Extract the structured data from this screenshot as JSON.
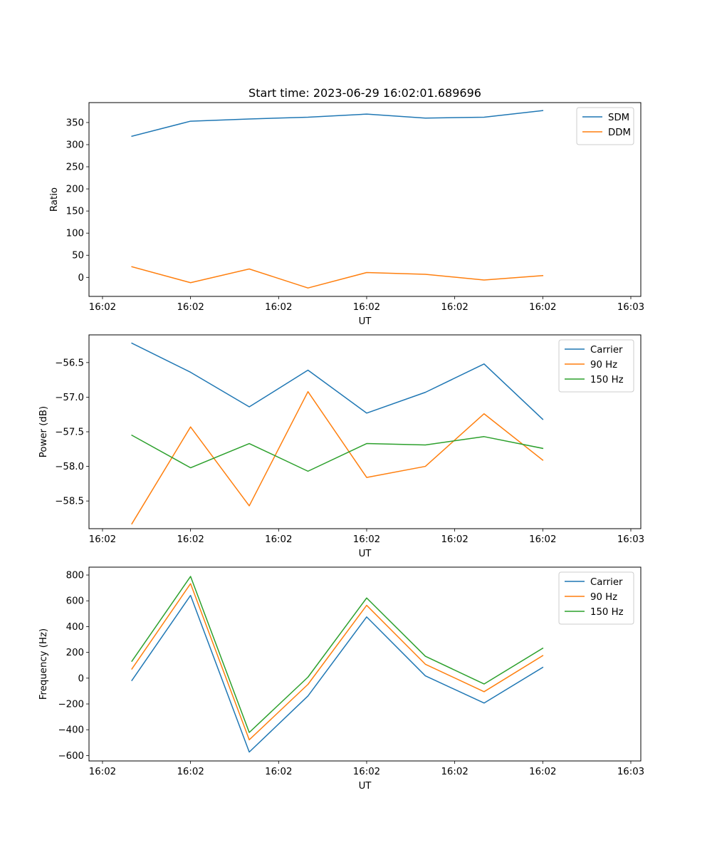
{
  "chart_data": [
    {
      "type": "line",
      "title": "Start time: 2023-06-29 16:02:01.689696",
      "xlabel": "UT",
      "ylabel": "Ratio",
      "x": [
        1,
        2,
        3,
        4,
        5,
        6,
        7,
        8
      ],
      "xlim": [
        0.27,
        9.67
      ],
      "xticks": [
        0.5,
        2,
        3.5,
        5,
        6.5,
        8,
        9.5
      ],
      "xtick_labels": [
        "16:02",
        "16:02",
        "16:02",
        "16:02",
        "16:02",
        "16:02",
        "16:03"
      ],
      "ylim": [
        -43,
        395
      ],
      "yticks": [
        0,
        50,
        100,
        150,
        200,
        250,
        300,
        350
      ],
      "ytick_labels": [
        "0",
        "50",
        "100",
        "150",
        "200",
        "250",
        "300",
        "350"
      ],
      "grid": false,
      "legend_position": "top-right",
      "series": [
        {
          "name": "SDM",
          "color": "#1f77b4",
          "values": [
            319,
            353,
            358,
            362,
            369,
            360,
            362,
            377
          ]
        },
        {
          "name": "DDM",
          "color": "#ff7f0e",
          "values": [
            24,
            -12,
            19,
            -24,
            11,
            7,
            -6,
            4
          ]
        }
      ]
    },
    {
      "type": "line",
      "title": "",
      "xlabel": "UT",
      "ylabel": "Power (dB)",
      "x": [
        1,
        2,
        3,
        4,
        5,
        6,
        7,
        8
      ],
      "xlim": [
        0.27,
        9.67
      ],
      "xticks": [
        0.5,
        2,
        3.5,
        5,
        6.5,
        8,
        9.5
      ],
      "xtick_labels": [
        "16:02",
        "16:02",
        "16:02",
        "16:02",
        "16:02",
        "16:02",
        "16:03"
      ],
      "ylim": [
        -58.9,
        -56.1
      ],
      "yticks": [
        -58.5,
        -58.0,
        -57.5,
        -57.0,
        -56.5
      ],
      "ytick_labels": [
        "−58.5",
        "−58.0",
        "−57.5",
        "−57.0",
        "−56.5"
      ],
      "grid": false,
      "legend_position": "top-right",
      "series": [
        {
          "name": "Carrier",
          "color": "#1f77b4",
          "values": [
            -56.22,
            -56.64,
            -57.14,
            -56.61,
            -57.23,
            -56.93,
            -56.52,
            -57.32
          ]
        },
        {
          "name": "90 Hz",
          "color": "#ff7f0e",
          "values": [
            -58.83,
            -57.43,
            -58.57,
            -56.92,
            -58.16,
            -58.0,
            -57.24,
            -57.91
          ]
        },
        {
          "name": "150 Hz",
          "color": "#2ca02c",
          "values": [
            -57.55,
            -58.02,
            -57.67,
            -58.07,
            -57.67,
            -57.69,
            -57.57,
            -57.74
          ]
        }
      ]
    },
    {
      "type": "line",
      "title": "",
      "xlabel": "UT",
      "ylabel": "Frequency (Hz)",
      "x": [
        1,
        2,
        3,
        4,
        5,
        6,
        7,
        8
      ],
      "xlim": [
        0.27,
        9.67
      ],
      "xticks": [
        0.5,
        2,
        3.5,
        5,
        6.5,
        8,
        9.5
      ],
      "xtick_labels": [
        "16:02",
        "16:02",
        "16:02",
        "16:02",
        "16:02",
        "16:02",
        "16:03"
      ],
      "ylim": [
        -642,
        861
      ],
      "yticks": [
        -600,
        -400,
        -200,
        0,
        200,
        400,
        600,
        800
      ],
      "ytick_labels": [
        "−600",
        "−400",
        "−200",
        "0",
        "200",
        "400",
        "600",
        "800"
      ],
      "grid": false,
      "legend_position": "top-right",
      "series": [
        {
          "name": "Carrier",
          "color": "#1f77b4",
          "values": [
            -18,
            642,
            -573,
            -138,
            475,
            18,
            -193,
            84
          ]
        },
        {
          "name": "90 Hz",
          "color": "#ff7f0e",
          "values": [
            71,
            733,
            -478,
            -48,
            565,
            108,
            -105,
            175
          ]
        },
        {
          "name": "150 Hz",
          "color": "#2ca02c",
          "values": [
            131,
            789,
            -421,
            8,
            622,
            170,
            -45,
            232
          ]
        }
      ]
    }
  ]
}
